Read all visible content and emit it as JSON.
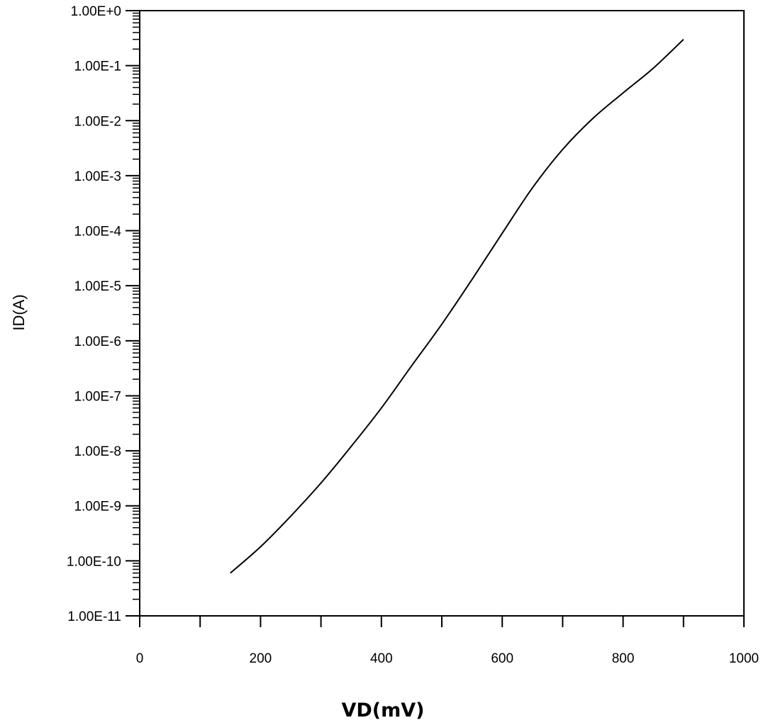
{
  "chart_data": {
    "type": "line",
    "title": "",
    "xlabel": "VD(mV)",
    "ylabel": "ID(A)",
    "xlim": [
      0,
      1000
    ],
    "ylim": [
      1e-11,
      1
    ],
    "yscale": "log",
    "grid": false,
    "legend": "none",
    "x_ticks": [
      "0",
      "200",
      "400",
      "600",
      "800",
      "1000"
    ],
    "y_ticks": [
      "1.00E+0",
      "1.00E-1",
      "1.00E-2",
      "1.00E-3",
      "1.00E-4",
      "1.00E-5",
      "1.00E-6",
      "1.00E-7",
      "1.00E-8",
      "1.00E-9",
      "1.00E-10",
      "1.00E-11"
    ],
    "series": [
      {
        "color": "#000000",
        "x": [
          150,
          200,
          250,
          300,
          350,
          400,
          450,
          500,
          550,
          600,
          650,
          700,
          750,
          800,
          850,
          900
        ],
        "y": [
          6e-11,
          1.8e-10,
          6.5e-10,
          2.6e-09,
          1.2e-08,
          6e-08,
          3.5e-07,
          2e-06,
          1.3e-05,
          9e-05,
          0.0006,
          0.003,
          0.011,
          0.032,
          0.09,
          0.3
        ]
      }
    ]
  }
}
